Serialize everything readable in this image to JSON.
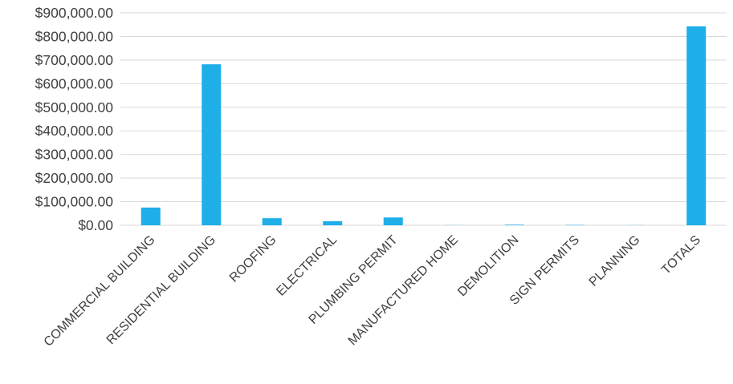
{
  "chart_data": {
    "type": "bar",
    "title": "",
    "xlabel": "",
    "ylabel": "",
    "ylim": [
      0,
      900000
    ],
    "yticks": [
      0,
      100000,
      200000,
      300000,
      400000,
      500000,
      600000,
      700000,
      800000,
      900000
    ],
    "ytick_labels": [
      "$0.00",
      "$100,000.00",
      "$200,000.00",
      "$300,000.00",
      "$400,000.00",
      "$500,000.00",
      "$600,000.00",
      "$700,000.00",
      "$800,000.00",
      "$900,000.00"
    ],
    "grid": true,
    "legend": "none",
    "bar_color": "#1EAEE8",
    "categories": [
      "COMMERCIAL BUILDING",
      "RESIDENTIAL BUILDING",
      "ROOFING",
      "ELECTRICAL",
      "PLUMBING PERMIT",
      "MANUFACTURED HOME",
      "DEMOLITION",
      "SIGN PERMITS",
      "PLANNING",
      "TOTALS"
    ],
    "values": [
      75000,
      682000,
      30000,
      17000,
      33000,
      500,
      2500,
      1500,
      500,
      843000
    ]
  }
}
